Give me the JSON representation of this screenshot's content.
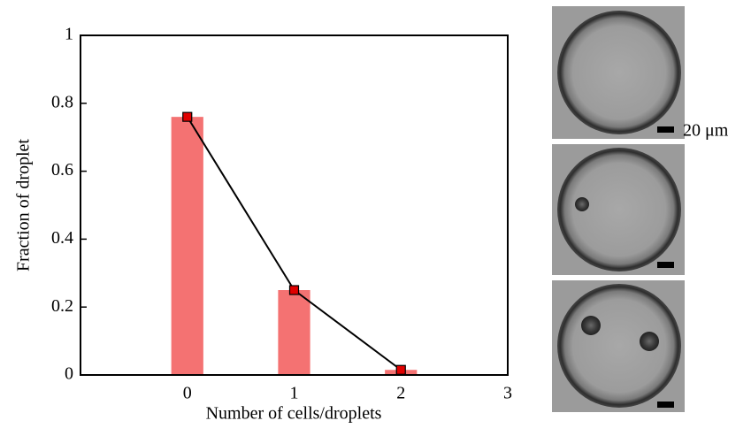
{
  "chart_data": {
    "type": "bar",
    "xlabel": "Number of cells/droplets",
    "ylabel": "Fraction of droplet",
    "x": [
      0,
      1,
      2
    ],
    "values": [
      0.76,
      0.25,
      0.015
    ],
    "color": "#f47272",
    "line_color": "#000000",
    "marker_color": "#e00000",
    "line": true,
    "xlim": [
      -1,
      3
    ],
    "xticks": [
      0,
      1,
      2,
      3
    ],
    "ylim": [
      0,
      1
    ],
    "yticks": [
      0,
      0.2,
      0.4,
      0.6,
      0.8,
      1
    ]
  },
  "images": {
    "scale_label": "20 μm"
  }
}
